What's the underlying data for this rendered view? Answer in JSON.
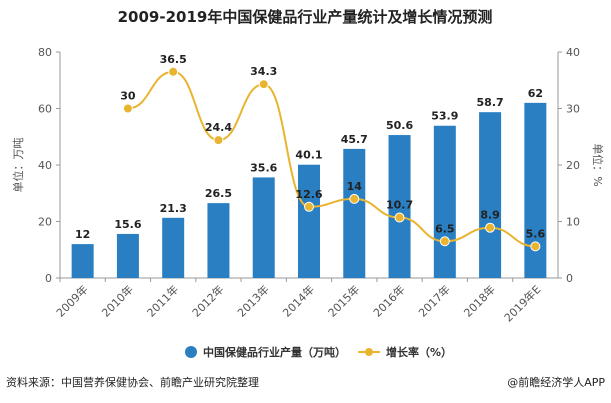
{
  "chart_data": {
    "type": "bar",
    "title": "2009-2019年中国保健品行业产量统计及增长情况预测",
    "categories": [
      "2009年",
      "2010年",
      "2011年",
      "2012年",
      "2013年",
      "2014年",
      "2015年",
      "2016年",
      "2017年",
      "2018年",
      "2019年E"
    ],
    "series": [
      {
        "name": "中国保健品行业产量（万吨）",
        "type": "bar",
        "axis": "left",
        "values": [
          12,
          15.6,
          21.3,
          26.5,
          35.6,
          40.1,
          45.7,
          50.6,
          53.9,
          58.7,
          62
        ],
        "labels": [
          "12",
          "15.6",
          "21.3",
          "26.5",
          "35.6",
          "40.1",
          "45.7",
          "50.6",
          "53.9",
          "58.7",
          "62"
        ]
      },
      {
        "name": "增长率（%）",
        "type": "line",
        "axis": "right",
        "values": [
          null,
          30,
          36.5,
          24.4,
          34.3,
          12.6,
          14,
          10.7,
          6.5,
          8.9,
          5.6
        ],
        "labels": [
          "",
          "30",
          "36.5",
          "24.4",
          "34.3",
          "12.6",
          "14",
          "10.7",
          "6.5",
          "8.9",
          "5.6"
        ]
      }
    ],
    "ylabel_left": "单位：万吨",
    "ylabel_right": "单位：%",
    "ylim_left": [
      0,
      80
    ],
    "ylim_right": [
      0,
      40
    ],
    "yticks_left": [
      "0",
      "20",
      "40",
      "60",
      "80"
    ],
    "yticks_right": [
      "0",
      "10",
      "20",
      "30",
      "40"
    ],
    "grid": false,
    "legend_position": "bottom",
    "colors": {
      "bar": "#2a7fc3",
      "line": "#e9b42f"
    },
    "source": "资料来源：中国营养保健协会、前瞻产业研究院整理",
    "brand": "@前瞻经济学人APP"
  }
}
